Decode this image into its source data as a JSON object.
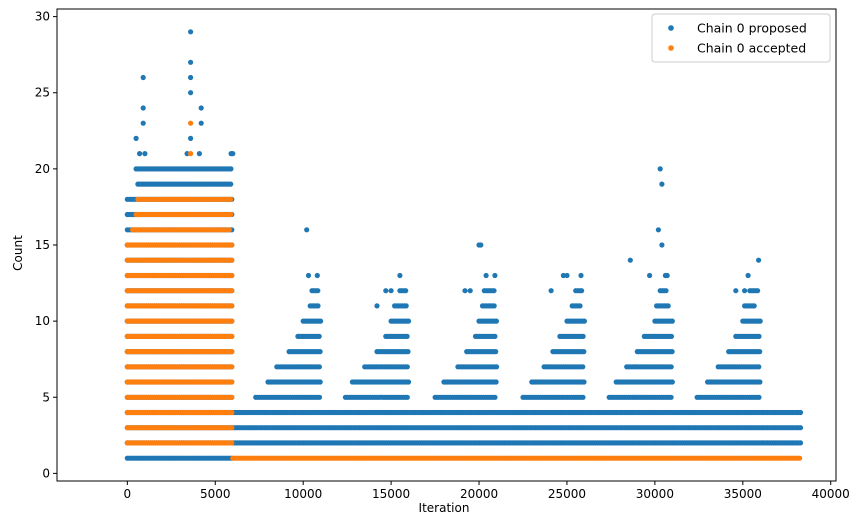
{
  "chart_data": {
    "type": "scatter",
    "title": "",
    "xlabel": "Iteration",
    "ylabel": "Count",
    "xlim": [
      -4000,
      40300
    ],
    "ylim": [
      -0.5,
      30.5
    ],
    "x_ticks": [
      0,
      5000,
      10000,
      15000,
      20000,
      25000,
      30000,
      35000,
      40000
    ],
    "y_ticks": [
      0,
      5,
      10,
      15,
      20,
      25,
      30
    ],
    "x_tick_labels": [
      "0",
      "5000",
      "10000",
      "15000",
      "20000",
      "25000",
      "30000",
      "35000",
      "40000"
    ],
    "y_tick_labels": [
      "0",
      "5",
      "10",
      "15",
      "20",
      "25",
      "30"
    ],
    "grid": false,
    "legend_position": "top-right",
    "series": [
      {
        "name": "Chain 0 proposed",
        "color": "#1f77b4",
        "bands": [
          {
            "y": 1,
            "ranges": [
              [
                0,
                6000
              ]
            ]
          },
          {
            "y": 2,
            "ranges": [
              [
                0,
                38300
              ]
            ]
          },
          {
            "y": 3,
            "ranges": [
              [
                0,
                38300
              ]
            ]
          },
          {
            "y": 4,
            "ranges": [
              [
                0,
                38300
              ]
            ]
          },
          {
            "y": 5,
            "ranges": [
              [
                0,
                6000
              ],
              [
                7300,
                11000
              ],
              [
                12400,
                16000
              ],
              [
                17500,
                21000
              ],
              [
                22500,
                26000
              ],
              [
                27400,
                31000
              ],
              [
                32400,
                36000
              ]
            ]
          },
          {
            "y": 6,
            "ranges": [
              [
                0,
                6000
              ],
              [
                8000,
                11000
              ],
              [
                12800,
                16000
              ],
              [
                18000,
                21000
              ],
              [
                23000,
                26000
              ],
              [
                27800,
                31000
              ],
              [
                33000,
                36000
              ]
            ]
          },
          {
            "y": 7,
            "ranges": [
              [
                0,
                6000
              ],
              [
                8500,
                11000
              ],
              [
                13500,
                16000
              ],
              [
                18800,
                21000
              ],
              [
                23700,
                26000
              ],
              [
                28400,
                31000
              ],
              [
                33600,
                36000
              ]
            ]
          },
          {
            "y": 8,
            "ranges": [
              [
                0,
                6000
              ],
              [
                9200,
                11000
              ],
              [
                14200,
                16000
              ],
              [
                19300,
                21000
              ],
              [
                24200,
                26000
              ],
              [
                29000,
                31000
              ],
              [
                34200,
                36000
              ]
            ]
          },
          {
            "y": 9,
            "ranges": [
              [
                0,
                6000
              ],
              [
                9700,
                11000
              ],
              [
                14700,
                16000
              ],
              [
                19800,
                21000
              ],
              [
                24600,
                26000
              ],
              [
                29400,
                31000
              ],
              [
                34600,
                36000
              ]
            ]
          },
          {
            "y": 10,
            "ranges": [
              [
                0,
                6000
              ],
              [
                10000,
                11000
              ],
              [
                15000,
                16000
              ],
              [
                20000,
                21000
              ],
              [
                25000,
                26000
              ],
              [
                30000,
                31000
              ],
              [
                35000,
                36000
              ]
            ]
          },
          {
            "y": 11,
            "ranges": [
              [
                0,
                6000
              ],
              [
                10400,
                10900
              ],
              [
                15200,
                15900
              ],
              [
                20200,
                20900
              ],
              [
                25300,
                25800
              ],
              [
                30100,
                30800
              ],
              [
                35100,
                35700
              ]
            ]
          },
          {
            "y": 12,
            "ranges": [
              [
                0,
                6000
              ],
              [
                10500,
                10900
              ],
              [
                15500,
                15900
              ],
              [
                20300,
                20900
              ],
              [
                25500,
                25900
              ],
              [
                30300,
                30700
              ],
              [
                35400,
                35900
              ]
            ]
          },
          {
            "y": 13,
            "ranges": [
              [
                0,
                6000
              ]
            ]
          },
          {
            "y": 14,
            "ranges": [
              [
                0,
                6000
              ]
            ]
          },
          {
            "y": 15,
            "ranges": [
              [
                0,
                6000
              ]
            ]
          },
          {
            "y": 16,
            "ranges": [
              [
                0,
                6000
              ]
            ]
          },
          {
            "y": 17,
            "ranges": [
              [
                0,
                6000
              ]
            ]
          },
          {
            "y": 18,
            "ranges": [
              [
                0,
                6000
              ]
            ]
          },
          {
            "y": 19,
            "ranges": [
              [
                600,
                5900
              ]
            ]
          },
          {
            "y": 20,
            "ranges": [
              [
                500,
                5900
              ]
            ]
          }
        ],
        "points": [
          {
            "x": 500,
            "y": 22
          },
          {
            "x": 700,
            "y": 21
          },
          {
            "x": 1000,
            "y": 21
          },
          {
            "x": 900,
            "y": 23
          },
          {
            "x": 900,
            "y": 24
          },
          {
            "x": 900,
            "y": 26
          },
          {
            "x": 3400,
            "y": 21
          },
          {
            "x": 3600,
            "y": 22
          },
          {
            "x": 3600,
            "y": 25
          },
          {
            "x": 3600,
            "y": 26
          },
          {
            "x": 3600,
            "y": 27
          },
          {
            "x": 3600,
            "y": 29
          },
          {
            "x": 4100,
            "y": 21
          },
          {
            "x": 4200,
            "y": 23
          },
          {
            "x": 4200,
            "y": 24
          },
          {
            "x": 5900,
            "y": 21
          },
          {
            "x": 6000,
            "y": 21
          },
          {
            "x": 10200,
            "y": 16
          },
          {
            "x": 10300,
            "y": 13
          },
          {
            "x": 10800,
            "y": 13
          },
          {
            "x": 14200,
            "y": 11
          },
          {
            "x": 14700,
            "y": 12
          },
          {
            "x": 15000,
            "y": 12
          },
          {
            "x": 15500,
            "y": 13
          },
          {
            "x": 19200,
            "y": 12
          },
          {
            "x": 20000,
            "y": 15
          },
          {
            "x": 20100,
            "y": 15
          },
          {
            "x": 20400,
            "y": 13
          },
          {
            "x": 20900,
            "y": 13
          },
          {
            "x": 19500,
            "y": 12
          },
          {
            "x": 24100,
            "y": 12
          },
          {
            "x": 24800,
            "y": 13
          },
          {
            "x": 25000,
            "y": 13
          },
          {
            "x": 25800,
            "y": 13
          },
          {
            "x": 28600,
            "y": 14
          },
          {
            "x": 29700,
            "y": 13
          },
          {
            "x": 30200,
            "y": 16
          },
          {
            "x": 30300,
            "y": 20
          },
          {
            "x": 30400,
            "y": 19
          },
          {
            "x": 30400,
            "y": 15
          },
          {
            "x": 30600,
            "y": 13
          },
          {
            "x": 30700,
            "y": 13
          },
          {
            "x": 34600,
            "y": 12
          },
          {
            "x": 35100,
            "y": 12
          },
          {
            "x": 35300,
            "y": 13
          },
          {
            "x": 35900,
            "y": 14
          }
        ]
      },
      {
        "name": "Chain 0 accepted",
        "color": "#ff7f0e",
        "bands": [
          {
            "y": 1,
            "ranges": [
              [
                6000,
                38300
              ]
            ]
          },
          {
            "y": 2,
            "ranges": [
              [
                0,
                6000
              ]
            ]
          },
          {
            "y": 3,
            "ranges": [
              [
                0,
                6000
              ]
            ]
          },
          {
            "y": 4,
            "ranges": [
              [
                0,
                6000
              ]
            ]
          },
          {
            "y": 5,
            "ranges": [
              [
                0,
                6000
              ]
            ]
          },
          {
            "y": 6,
            "ranges": [
              [
                0,
                6000
              ]
            ]
          },
          {
            "y": 7,
            "ranges": [
              [
                0,
                6000
              ]
            ]
          },
          {
            "y": 8,
            "ranges": [
              [
                0,
                6000
              ]
            ]
          },
          {
            "y": 9,
            "ranges": [
              [
                0,
                6000
              ]
            ]
          },
          {
            "y": 10,
            "ranges": [
              [
                0,
                6000
              ]
            ]
          },
          {
            "y": 11,
            "ranges": [
              [
                0,
                6000
              ]
            ]
          },
          {
            "y": 12,
            "ranges": [
              [
                0,
                6000
              ]
            ]
          },
          {
            "y": 13,
            "ranges": [
              [
                0,
                6000
              ]
            ]
          },
          {
            "y": 14,
            "ranges": [
              [
                0,
                6000
              ]
            ]
          },
          {
            "y": 15,
            "ranges": [
              [
                0,
                6000
              ]
            ]
          },
          {
            "y": 16,
            "ranges": [
              [
                300,
                5900
              ]
            ]
          },
          {
            "y": 17,
            "ranges": [
              [
                500,
                5900
              ]
            ]
          },
          {
            "y": 18,
            "ranges": [
              [
                600,
                5900
              ]
            ]
          }
        ],
        "points": [
          {
            "x": 3600,
            "y": 21
          },
          {
            "x": 3600,
            "y": 23
          }
        ]
      }
    ]
  }
}
